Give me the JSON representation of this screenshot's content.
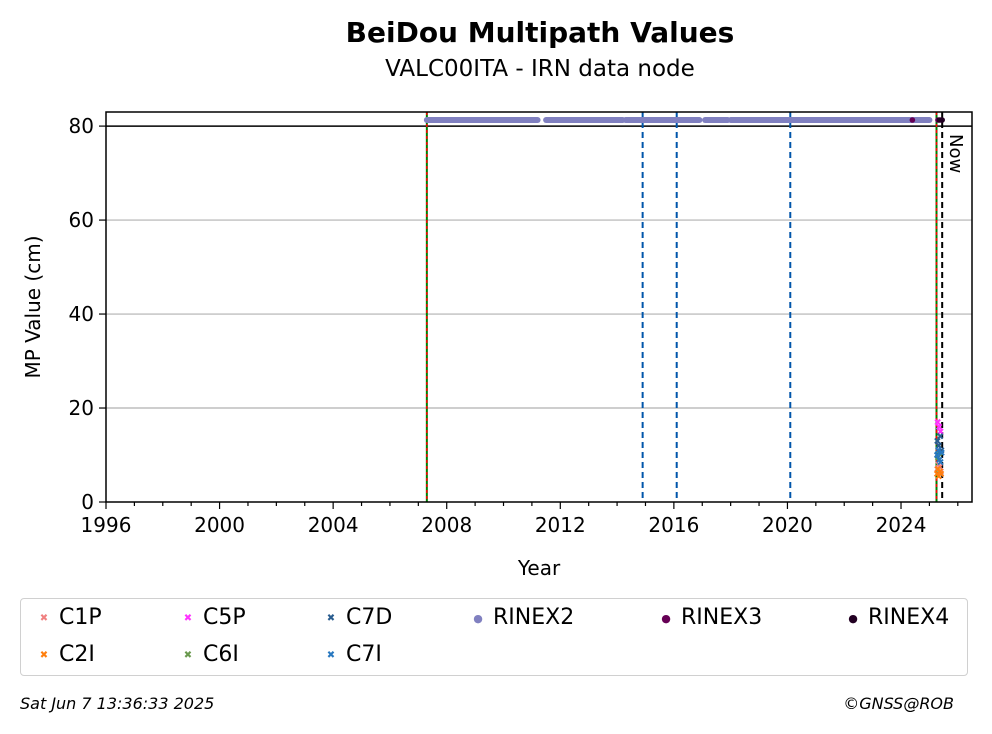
{
  "chart_data": {
    "type": "scatter",
    "title": "BeiDou Multipath Values",
    "subtitle": "VALC00ITA - IRN data node",
    "xlabel": "Year",
    "ylabel": "MP Value (cm)",
    "xlim": [
      1996,
      2026.5
    ],
    "ylim": [
      0,
      83
    ],
    "x_ticks": [
      "1996",
      "2000",
      "2004",
      "2008",
      "2012",
      "2016",
      "2020",
      "2024"
    ],
    "y_ticks": [
      "0",
      "20",
      "40",
      "60",
      "80"
    ],
    "grid": "horizontal",
    "legend_placement": "bottom",
    "reference_line_y": 80,
    "vertical_lines": {
      "green_red_dashed": [
        2007.3,
        2025.25
      ],
      "blue_dashed": [
        2014.9,
        2016.1,
        2020.1
      ],
      "black_dashed_now": 2025.45
    },
    "now_label": "Now",
    "rinex_availability": [
      {
        "name": "RINEX2",
        "color": "#8080c0",
        "segments": [
          [
            2007.3,
            2011.2
          ],
          [
            2011.5,
            2014.2
          ],
          [
            2014.3,
            2016.9
          ],
          [
            2017.1,
            2017.9
          ],
          [
            2018.0,
            2025.0
          ]
        ],
        "y": 81.3
      },
      {
        "name": "RINEX3",
        "color": "#660055",
        "points": [
          2024.4,
          2025.3,
          2025.4
        ],
        "y": 81.3
      },
      {
        "name": "RINEX4",
        "color": "#220022",
        "points": [
          2025.35,
          2025.45
        ],
        "y": 81.3
      }
    ],
    "series": [
      {
        "name": "C1P",
        "color": "#f08080",
        "x": [
          2025.28,
          2025.32,
          2025.36,
          2025.4
        ],
        "y": [
          7.0,
          8.0,
          7.5,
          6.5
        ]
      },
      {
        "name": "C2I",
        "color": "#ff7f0e",
        "x": [
          2025.27,
          2025.3,
          2025.33,
          2025.37,
          2025.41
        ],
        "y": [
          6.0,
          7.0,
          5.5,
          6.5,
          6.0
        ]
      },
      {
        "name": "C5P",
        "color": "#ff33ff",
        "x": [
          2025.29,
          2025.34,
          2025.39
        ],
        "y": [
          17.0,
          16.0,
          15.0
        ]
      },
      {
        "name": "C6I",
        "color": "#6a994e",
        "x": [
          2025.3,
          2025.35
        ],
        "y": [
          9.5,
          10.5
        ]
      },
      {
        "name": "C7D",
        "color": "#2a5d8f",
        "x": [
          2025.28,
          2025.33,
          2025.38,
          2025.42
        ],
        "y": [
          13.0,
          12.0,
          14.0,
          11.0
        ]
      },
      {
        "name": "C7I",
        "color": "#2878c0",
        "x": [
          2025.27,
          2025.31,
          2025.35,
          2025.39,
          2025.43
        ],
        "y": [
          10.0,
          11.0,
          9.0,
          8.5,
          10.5
        ]
      }
    ]
  },
  "legend": [
    {
      "label": "C1P",
      "symbol": "✖",
      "color": "#f08080"
    },
    {
      "label": "C5P",
      "symbol": "✖",
      "color": "#ff33ff"
    },
    {
      "label": "C7D",
      "symbol": "✖",
      "color": "#2a5d8f"
    },
    {
      "label": "RINEX2",
      "symbol": "●",
      "color": "#8080c0"
    },
    {
      "label": "RINEX3",
      "symbol": "●",
      "color": "#660055"
    },
    {
      "label": "RINEX4",
      "symbol": "●",
      "color": "#220022"
    },
    {
      "label": "C2I",
      "symbol": "✖",
      "color": "#ff7f0e"
    },
    {
      "label": "C6I",
      "symbol": "✖",
      "color": "#6a994e"
    },
    {
      "label": "C7I",
      "symbol": "✖",
      "color": "#2878c0"
    }
  ],
  "footer": {
    "timestamp": "Sat Jun  7 13:36:33 2025",
    "copyright": "©GNSS@ROB"
  }
}
